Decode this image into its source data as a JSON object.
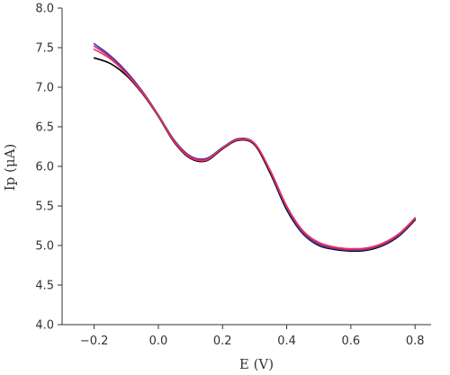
{
  "chart_data": {
    "type": "line",
    "xlabel": "E (V)",
    "ylabel": "Ip (μA)",
    "xlim": [
      -0.3,
      0.85
    ],
    "ylim": [
      4.0,
      8.0
    ],
    "x_ticks": [
      -0.2,
      0.0,
      0.2,
      0.4,
      0.6,
      0.8
    ],
    "y_ticks": [
      4.0,
      4.5,
      5.0,
      5.5,
      6.0,
      6.5,
      7.0,
      7.5,
      8.0
    ],
    "x_tick_labels": [
      "−0.2",
      "0.0",
      "0.2",
      "0.4",
      "0.6",
      "0.8"
    ],
    "y_tick_labels": [
      "4.0",
      "4.5",
      "5.0",
      "5.5",
      "6.0",
      "6.5",
      "7.0",
      "7.5",
      "8.0"
    ],
    "grid": false,
    "legend": "none",
    "series": [
      {
        "color": "#000000",
        "x": [
          -0.2,
          -0.15,
          -0.1,
          -0.05,
          0.0,
          0.05,
          0.1,
          0.15,
          0.2,
          0.25,
          0.3,
          0.35,
          0.4,
          0.45,
          0.5,
          0.55,
          0.6,
          0.65,
          0.7,
          0.75,
          0.8
        ],
        "y": [
          7.37,
          7.3,
          7.15,
          6.92,
          6.63,
          6.3,
          6.1,
          6.07,
          6.22,
          6.33,
          6.27,
          5.9,
          5.45,
          5.15,
          5.0,
          4.95,
          4.93,
          4.94,
          5.0,
          5.12,
          5.32
        ]
      },
      {
        "color": "#3a3aaa",
        "x": [
          -0.2,
          -0.15,
          -0.1,
          -0.05,
          0.0,
          0.05,
          0.1,
          0.15,
          0.2,
          0.25,
          0.3,
          0.35,
          0.4,
          0.45,
          0.5,
          0.55,
          0.6,
          0.65,
          0.7,
          0.75,
          0.8
        ],
        "y": [
          7.55,
          7.4,
          7.2,
          6.95,
          6.65,
          6.33,
          6.13,
          6.1,
          6.24,
          6.35,
          6.29,
          5.92,
          5.47,
          5.16,
          5.01,
          4.96,
          4.94,
          4.95,
          5.01,
          5.13,
          5.33
        ]
      },
      {
        "color": "#cc1a7a",
        "x": [
          -0.2,
          -0.15,
          -0.1,
          -0.05,
          0.0,
          0.05,
          0.1,
          0.15,
          0.2,
          0.25,
          0.3,
          0.35,
          0.4,
          0.45,
          0.5,
          0.55,
          0.6,
          0.65,
          0.7,
          0.75,
          0.8
        ],
        "y": [
          7.52,
          7.38,
          7.18,
          6.94,
          6.64,
          6.32,
          6.12,
          6.09,
          6.23,
          6.34,
          6.28,
          5.93,
          5.49,
          5.18,
          5.03,
          4.97,
          4.95,
          4.96,
          5.02,
          5.14,
          5.34
        ]
      },
      {
        "color": "#e8345a",
        "x": [
          -0.2,
          -0.15,
          -0.1,
          -0.05,
          0.0,
          0.05,
          0.1,
          0.15,
          0.2,
          0.25,
          0.3,
          0.35,
          0.4,
          0.45,
          0.5,
          0.55,
          0.6,
          0.65,
          0.7,
          0.75,
          0.8
        ],
        "y": [
          7.48,
          7.36,
          7.17,
          6.93,
          6.64,
          6.31,
          6.11,
          6.08,
          6.23,
          6.34,
          6.29,
          5.94,
          5.5,
          5.19,
          5.04,
          4.98,
          4.96,
          4.97,
          5.03,
          5.15,
          5.35
        ]
      }
    ]
  }
}
